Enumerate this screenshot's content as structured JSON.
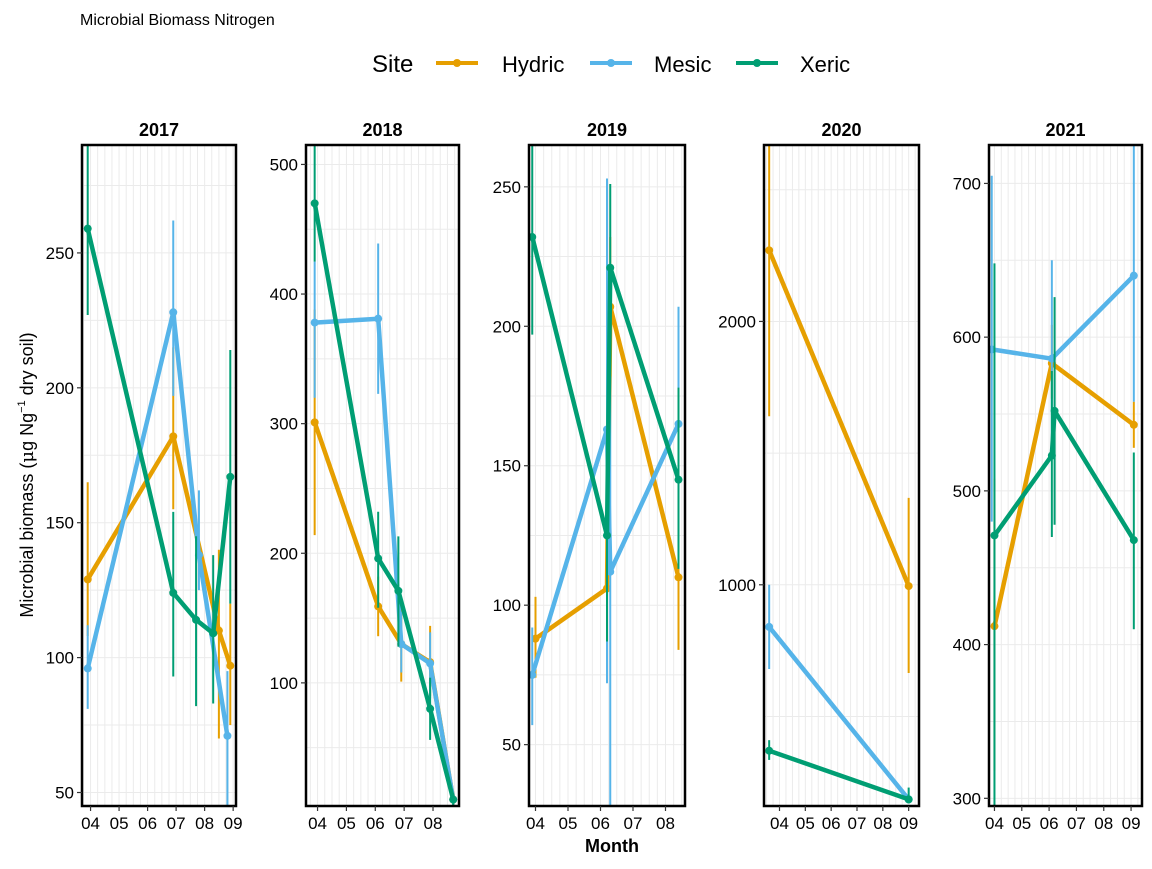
{
  "chart_data": {
    "type": "line",
    "title": "Microbial Biomass Nitrogen",
    "legend": {
      "title": "Site",
      "position": "top",
      "items": [
        "Hydric",
        "Mesic",
        "Xeric"
      ]
    },
    "colors": {
      "Hydric": "#E69F00",
      "Mesic": "#56B4E9",
      "Xeric": "#009E73"
    },
    "xlabel": "Month",
    "ylabel": "Microbial biomass (μg Ng⁻¹ dry soil)",
    "ylabel_parts": {
      "pre": "Microbial biomass (",
      "mu": "μ",
      "mid": "g Ng",
      "sup": "−1",
      "post": " dry soil)"
    },
    "grid": true,
    "panels": [
      {
        "label": "2017",
        "xlim": [
          3.7,
          9.1
        ],
        "xticks": [
          4,
          5,
          6,
          7,
          8,
          9
        ],
        "xticklabels": [
          "04",
          "05",
          "06",
          "07",
          "08",
          "09"
        ],
        "ylim": [
          45,
          290
        ],
        "yticks": [
          50,
          100,
          150,
          200,
          250
        ],
        "series": [
          {
            "name": "Hydric",
            "x": [
              3.9,
              6.9,
              8.5,
              8.9
            ],
            "y": [
              129,
              182,
              110,
              97
            ],
            "lo": [
              108,
              155,
              70,
              75
            ],
            "hi": [
              165,
              215,
              140,
              120
            ]
          },
          {
            "name": "Mesic",
            "x": [
              3.9,
              6.9,
              7.8,
              8.8
            ],
            "y": [
              96,
              228,
              138,
              71
            ],
            "lo": [
              81,
              197,
              125,
              45
            ],
            "hi": [
              112,
              262,
              162,
              95
            ]
          },
          {
            "name": "Xeric",
            "x": [
              3.9,
              6.9,
              7.7,
              8.3,
              8.9
            ],
            "y": [
              259,
              124,
              114,
              109,
              167
            ],
            "lo": [
              227,
              93,
              82,
              83,
              120
            ],
            "hi": [
              290,
              154,
              145,
              138,
              214
            ]
          }
        ]
      },
      {
        "label": "2018",
        "xlim": [
          3.6,
          8.9
        ],
        "xticks": [
          4,
          5,
          6,
          7,
          8
        ],
        "xticklabels": [
          "04",
          "05",
          "06",
          "07",
          "08"
        ],
        "ylim": [
          5,
          515
        ],
        "yticks": [
          100,
          200,
          300,
          400,
          500
        ],
        "series": [
          {
            "name": "Hydric",
            "x": [
              3.9,
              6.1,
              6.9,
              7.9,
              8.7
            ],
            "y": [
              301,
              159,
              130,
              116,
              10
            ],
            "lo": [
              214,
              136,
              101,
              90,
              5
            ],
            "hi": [
              388,
              182,
              160,
              144,
              15
            ]
          },
          {
            "name": "Mesic",
            "x": [
              3.9,
              6.1,
              6.9,
              7.9,
              8.7
            ],
            "y": [
              378,
              381,
              130,
              115,
              10
            ],
            "lo": [
              320,
              323,
              108,
              88,
              5
            ],
            "hi": [
              425,
              439,
              155,
              139,
              15
            ]
          },
          {
            "name": "Xeric",
            "x": [
              3.9,
              6.1,
              6.8,
              7.9,
              8.7
            ],
            "y": [
              470,
              196,
              171,
              80,
              10
            ],
            "lo": [
              425,
              158,
              128,
              56,
              5
            ],
            "hi": [
              515,
              232,
              213,
              104,
              15
            ]
          }
        ]
      },
      {
        "label": "2019",
        "xlim": [
          3.8,
          8.6
        ],
        "xticks": [
          4,
          5,
          6,
          7,
          8
        ],
        "xticklabels": [
          "04",
          "05",
          "06",
          "07",
          "08"
        ],
        "ylim": [
          28,
          265
        ],
        "yticks": [
          50,
          100,
          150,
          200,
          250
        ],
        "series": [
          {
            "name": "Hydric",
            "x": [
              4.0,
              6.2,
              6.3,
              8.4
            ],
            "y": [
              88,
              106,
              207,
              110
            ],
            "lo": [
              74,
              79,
              182,
              84
            ],
            "hi": [
              103,
              133,
              232,
              136
            ]
          },
          {
            "name": "Mesic",
            "x": [
              3.9,
              6.2,
              6.3,
              8.4
            ],
            "y": [
              75,
              163,
              112,
              165
            ],
            "lo": [
              57,
              72,
              28,
              125
            ],
            "hi": [
              92,
              253,
              182,
              207
            ]
          },
          {
            "name": "Xeric",
            "x": [
              3.9,
              6.2,
              6.3,
              8.4
            ],
            "y": [
              232,
              125,
              221,
              145
            ],
            "lo": [
              197,
              87,
              191,
              113
            ],
            "hi": [
              265,
              163,
              251,
              178
            ]
          }
        ]
      },
      {
        "label": "2020",
        "xlim": [
          3.4,
          9.4
        ],
        "xticks": [
          4,
          5,
          6,
          7,
          8,
          9
        ],
        "xticklabels": [
          "04",
          "05",
          "06",
          "07",
          "08",
          "09"
        ],
        "ylim": [
          160,
          2670
        ],
        "yticks": [
          1000,
          2000
        ],
        "series": [
          {
            "name": "Hydric",
            "x": [
              3.6,
              9.0
            ],
            "y": [
              2270,
              995
            ],
            "lo": [
              1640,
              665
            ],
            "hi": [
              2670,
              1330
            ]
          },
          {
            "name": "Mesic",
            "x": [
              3.6,
              9.0
            ],
            "y": [
              840,
              185
            ],
            "lo": [
              680,
              175
            ],
            "hi": [
              1000,
              200
            ]
          },
          {
            "name": "Xeric",
            "x": [
              3.6,
              9.0
            ],
            "y": [
              370,
              185
            ],
            "lo": [
              335,
              170
            ],
            "hi": [
              410,
              230
            ]
          }
        ]
      },
      {
        "label": "2021",
        "xlim": [
          3.8,
          9.4
        ],
        "xticks": [
          4,
          5,
          6,
          7,
          8,
          9
        ],
        "xticklabels": [
          "04",
          "05",
          "06",
          "07",
          "08",
          "09"
        ],
        "ylim": [
          295,
          725
        ],
        "yticks": [
          300,
          400,
          500,
          600,
          700
        ],
        "series": [
          {
            "name": "Hydric",
            "x": [
              4.0,
              6.1,
              9.1
            ],
            "y": [
              412,
              583,
              543
            ],
            "lo": [
              318,
              560,
              528
            ],
            "hi": [
              508,
              608,
              558
            ]
          },
          {
            "name": "Mesic",
            "x": [
              3.9,
              6.1,
              9.1
            ],
            "y": [
              592,
              586,
              640
            ],
            "lo": [
              480,
              524,
              558
            ],
            "hi": [
              705,
              650,
              725
            ]
          },
          {
            "name": "Xeric",
            "x": [
              4.0,
              6.1,
              6.2,
              9.1
            ],
            "y": [
              471,
              523,
              552,
              468
            ],
            "lo": [
              295,
              470,
              478,
              410
            ],
            "hi": [
              648,
              578,
              626,
              525
            ]
          }
        ]
      }
    ]
  }
}
